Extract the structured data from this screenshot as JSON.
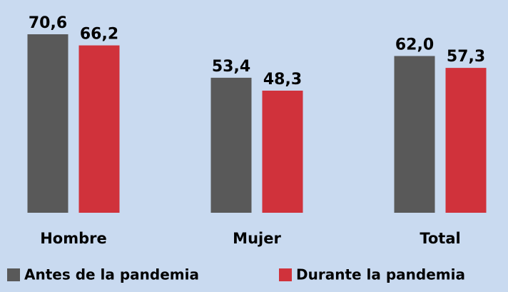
{
  "chart_data": {
    "type": "bar",
    "categories": [
      "Hombre",
      "Mujer",
      "Total"
    ],
    "series": [
      {
        "name": "Antes de la pandemia",
        "color": "#595959",
        "values": [
          70.6,
          53.4,
          62.0
        ],
        "value_labels": [
          "70,6",
          "53,4",
          "62,0"
        ]
      },
      {
        "name": "Durante la pandemia",
        "color": "#d0323b",
        "values": [
          66.2,
          48.3,
          57.3
        ],
        "value_labels": [
          "66,2",
          "48,3",
          "57,3"
        ]
      }
    ],
    "legend": "bottom"
  }
}
